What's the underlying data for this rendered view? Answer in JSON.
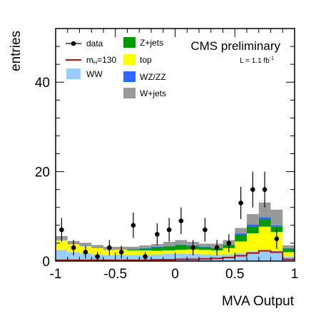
{
  "chart_data": {
    "type": "bar",
    "stacked": true,
    "x_edges": [
      -1.0,
      -0.9,
      -0.8,
      -0.7,
      -0.6,
      -0.5,
      -0.4,
      -0.3,
      -0.2,
      -0.1,
      0.0,
      0.1,
      0.2,
      0.3,
      0.4,
      0.5,
      0.6,
      0.7,
      0.8,
      0.9,
      1.0
    ],
    "xlabel": "MVA Output",
    "ylabel": "entries",
    "xlim": [
      -1,
      1
    ],
    "ylim": [
      0,
      52
    ],
    "x_ticks": [
      "-1",
      "-0.5",
      "0",
      "0.5",
      "1"
    ],
    "x_tick_values": [
      -1,
      -0.5,
      0,
      0.5,
      1
    ],
    "y_ticks": [
      "0",
      "20",
      "40"
    ],
    "y_tick_values": [
      0,
      20,
      40
    ],
    "annotations": {
      "experiment": "CMS preliminary",
      "lumi_prefix": "L = 1.1 fb",
      "lumi_sup": "-1"
    },
    "legend_placement": "top",
    "stack": [
      {
        "name": "WW",
        "color": "#99ccff",
        "values": [
          2.5,
          2.0,
          1.8,
          1.5,
          1.3,
          1.4,
          1.4,
          1.4,
          1.5,
          1.6,
          1.7,
          1.6,
          1.5,
          1.4,
          1.5,
          1.8,
          2.2,
          2.5,
          2.3,
          1.0
        ]
      },
      {
        "name": "top",
        "color": "#ffff00",
        "values": [
          2.2,
          1.8,
          1.6,
          1.4,
          1.2,
          1.2,
          1.0,
          1.0,
          0.8,
          0.8,
          0.8,
          1.0,
          1.0,
          1.0,
          1.4,
          2.6,
          4.0,
          5.2,
          4.2,
          1.0
        ]
      },
      {
        "name": "Z+jets",
        "color": "#009900",
        "values": [
          0.0,
          0.0,
          0.0,
          0.0,
          0.0,
          0.0,
          0.2,
          0.4,
          0.8,
          0.9,
          1.1,
          0.8,
          0.6,
          0.5,
          0.7,
          1.5,
          1.6,
          1.7,
          1.2,
          0.8
        ]
      },
      {
        "name": "WZ/ZZ",
        "color": "#3366ff",
        "values": [
          0.1,
          0.1,
          0.1,
          0.1,
          0.1,
          0.1,
          0.1,
          0.1,
          0.1,
          0.1,
          0.1,
          0.1,
          0.1,
          0.1,
          0.1,
          0.3,
          0.4,
          0.4,
          0.3,
          0.1
        ]
      },
      {
        "name": "W+jets",
        "color": "#999999",
        "values": [
          0.8,
          0.6,
          0.6,
          0.6,
          0.6,
          0.5,
          0.5,
          0.6,
          0.6,
          0.9,
          1.0,
          0.8,
          0.7,
          0.9,
          1.0,
          1.2,
          2.3,
          3.3,
          3.5,
          0.6
        ]
      }
    ],
    "signal": {
      "name": "m_H=130",
      "label_main": "m",
      "label_sub": "H",
      "label_tail": "=130",
      "color": "#b01010",
      "values": [
        0.2,
        0.2,
        0.2,
        0.2,
        0.2,
        0.2,
        0.2,
        0.2,
        0.3,
        0.3,
        0.4,
        0.4,
        0.5,
        0.6,
        0.8,
        1.2,
        1.8,
        2.3,
        2.0,
        0.4
      ]
    },
    "data": {
      "name": "data",
      "x": [
        -0.95,
        -0.85,
        -0.75,
        -0.65,
        -0.55,
        -0.45,
        -0.35,
        -0.25,
        -0.15,
        -0.05,
        0.05,
        0.15,
        0.25,
        0.35,
        0.45,
        0.55,
        0.65,
        0.75,
        0.85
      ],
      "y": [
        7,
        3,
        2,
        1,
        3,
        2,
        8,
        1,
        6,
        7,
        9,
        3,
        7,
        3,
        4,
        13,
        16,
        16,
        5
      ]
    },
    "legend": [
      {
        "name": "data",
        "kind": "marker"
      },
      {
        "name": "m_H=130",
        "kind": "line"
      },
      {
        "name": "WW",
        "kind": "box"
      },
      {
        "name": "Z+jets",
        "kind": "box"
      },
      {
        "name": "top",
        "kind": "box"
      },
      {
        "name": "WZ/ZZ",
        "kind": "box"
      },
      {
        "name": "W+jets",
        "kind": "box"
      }
    ]
  }
}
